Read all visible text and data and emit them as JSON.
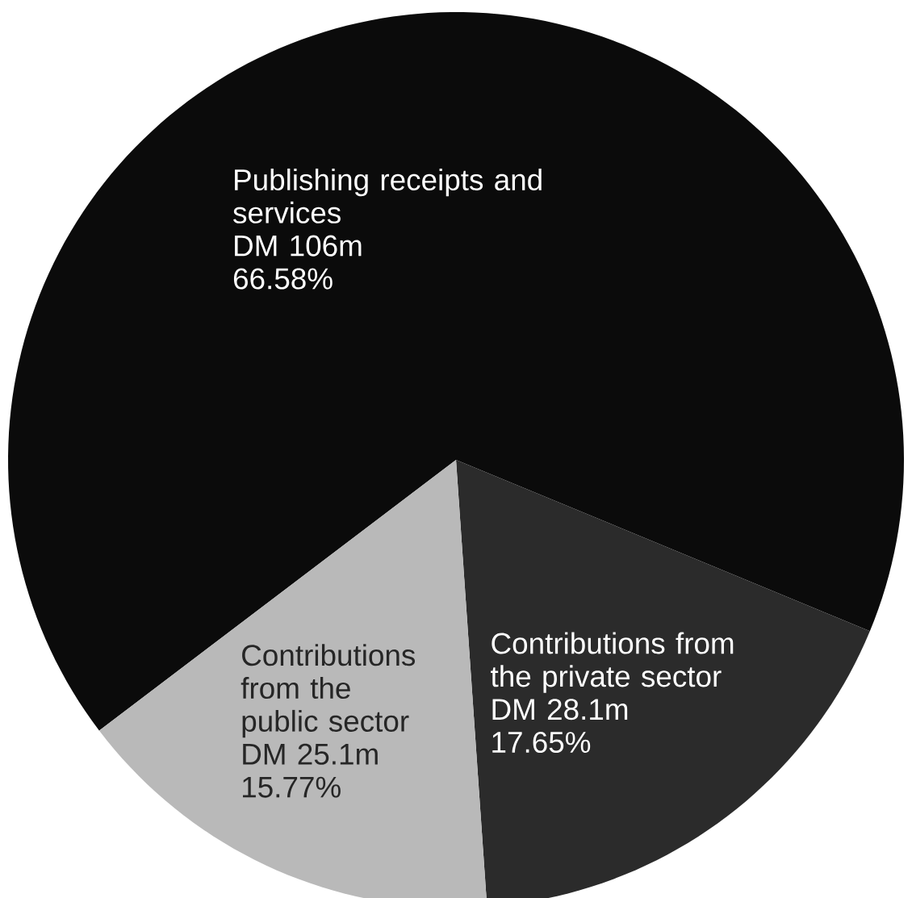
{
  "chart_data": {
    "type": "pie",
    "categories": [
      "Publishing receipts and services",
      "Contributions from the private sector",
      "Contributions from the public sector"
    ],
    "values": [
      66.58,
      17.65,
      15.77
    ],
    "colors": [
      "#0b0b0b",
      "#2b2b2b",
      "#b9b9b9"
    ],
    "value_labels": [
      "66.58%",
      "17.65%",
      "15.77%"
    ],
    "annotations": [
      {
        "text": "DM 106m",
        "x": "Publishing receipts and services"
      },
      {
        "text": "DM 28.1m",
        "x": "Contributions from the private sector"
      },
      {
        "text": "DM 25.1m",
        "x": "Contributions from the public sector"
      }
    ]
  }
}
